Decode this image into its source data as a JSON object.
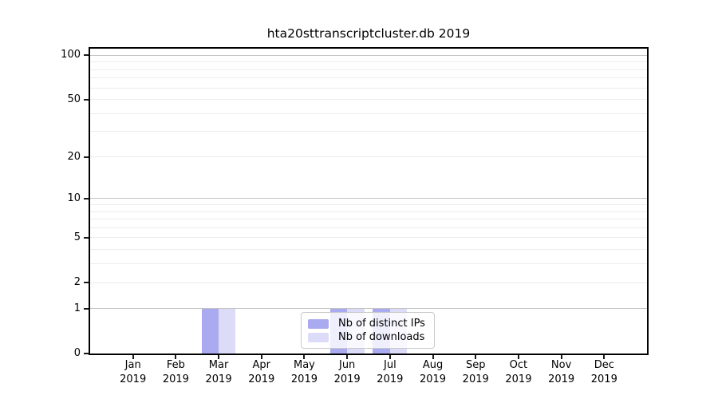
{
  "figure": {
    "background_color": "#ffffff",
    "spine_color": "#000000",
    "grid_major_color": "#c3c3c3",
    "grid_minor_color": "#ececec"
  },
  "chart_data": {
    "type": "bar",
    "title": "hta20sttranscriptcluster.db 2019",
    "xlabel": "",
    "ylabel": "",
    "year": "2019",
    "categories": [
      "Jan",
      "Feb",
      "Mar",
      "Apr",
      "May",
      "Jun",
      "Jul",
      "Aug",
      "Sep",
      "Oct",
      "Nov",
      "Dec"
    ],
    "series": [
      {
        "name": "Nb of distinct IPs",
        "color": "#aaaaf0",
        "values": [
          0,
          0,
          1,
          0,
          0,
          1,
          1,
          0,
          0,
          0,
          0,
          0
        ]
      },
      {
        "name": "Nb of downloads",
        "color": "#dcdcf8",
        "values": [
          0,
          0,
          1,
          0,
          0,
          1,
          1,
          0,
          0,
          0,
          0,
          0
        ]
      }
    ],
    "yscale": "log1p",
    "ylim": [
      0,
      111
    ],
    "yticks": [
      0,
      1,
      2,
      5,
      10,
      20,
      50,
      100
    ],
    "grid_major_values": [
      1,
      10,
      100
    ],
    "grid_minor_values": [
      2,
      3,
      4,
      5,
      6,
      7,
      8,
      9,
      20,
      30,
      40,
      50,
      60,
      70,
      80,
      90
    ],
    "grid": true,
    "legend_position": "lower center",
    "legend_labels": [
      "Nb of distinct IPs",
      "Nb of downloads"
    ]
  }
}
